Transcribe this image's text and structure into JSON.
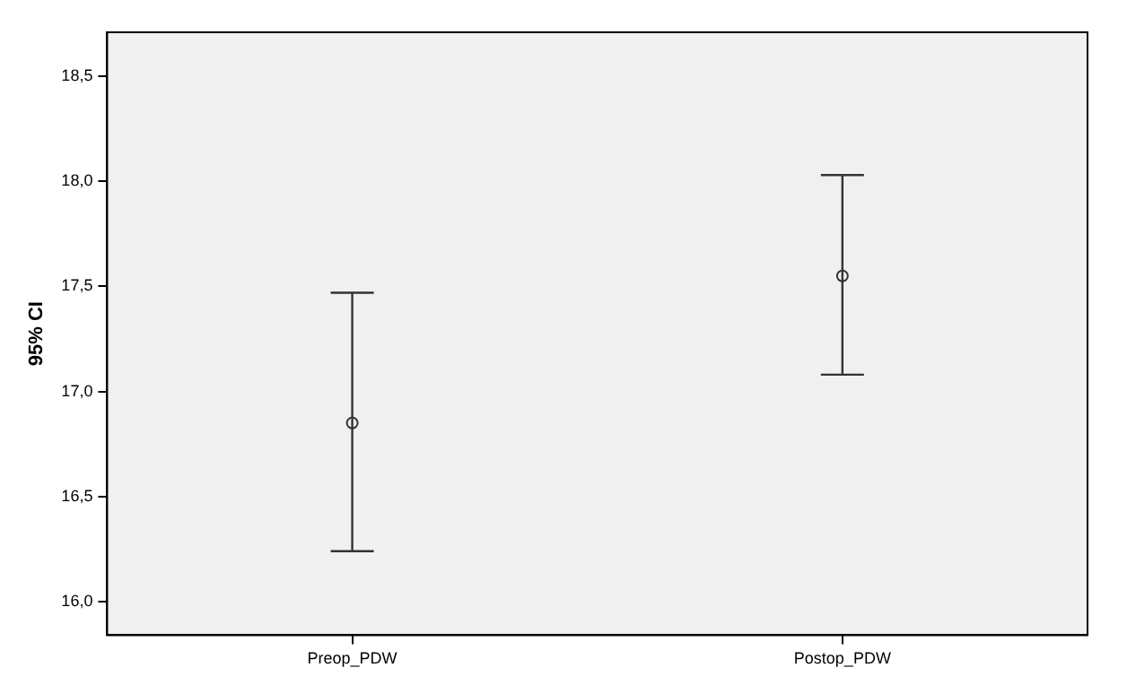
{
  "chart_data": {
    "type": "scatter",
    "ylabel": "95% CI",
    "categories": [
      "Preop_PDW",
      "Postop_PDW"
    ],
    "values": [
      16.85,
      17.55
    ],
    "errors": [
      [
        16.24,
        17.47
      ],
      [
        17.08,
        18.03
      ]
    ],
    "color": "#333333",
    "marker": "circle",
    "grid": false,
    "legend": false,
    "ylim": [
      15.84,
      18.71
    ],
    "yticks": [
      {
        "value": 16,
        "label": "16,0"
      },
      {
        "value": 16.5,
        "label": "16,5"
      },
      {
        "value": 17,
        "label": "17,0"
      },
      {
        "value": 17.5,
        "label": "17,5"
      },
      {
        "value": 18,
        "label": "18,0"
      },
      {
        "value": 18.5,
        "label": "18,5"
      }
    ]
  }
}
